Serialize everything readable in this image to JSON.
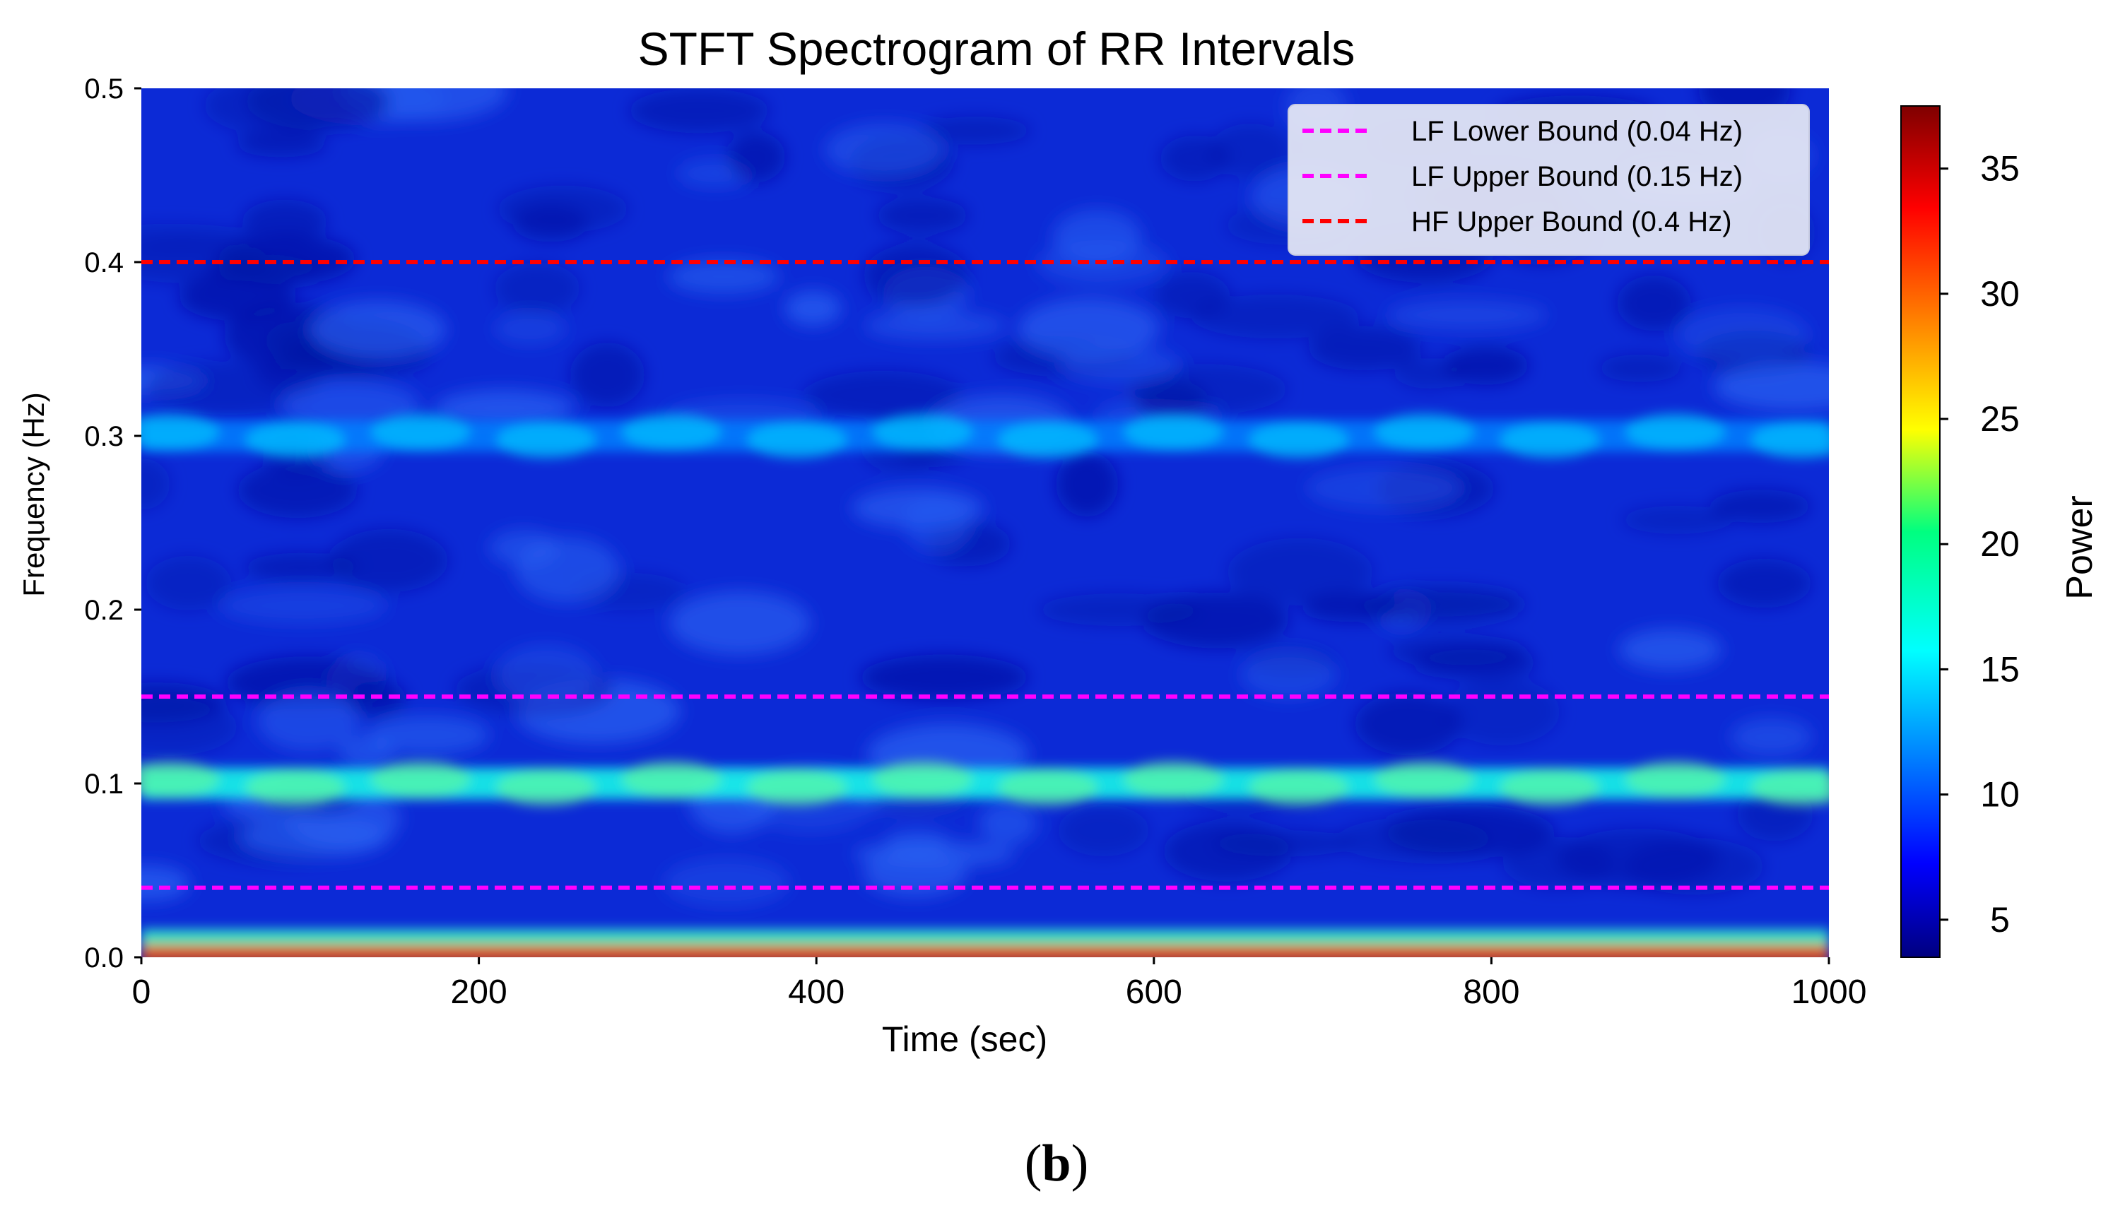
{
  "chart_data": {
    "type": "heatmap",
    "title": "STFT Spectrogram of RR Intervals",
    "xlabel": "Time (sec)",
    "ylabel": "Frequency (Hz)",
    "xlim": [
      0,
      1000
    ],
    "ylim": [
      0,
      0.5
    ],
    "x_ticks": [
      "0",
      "200",
      "400",
      "600",
      "800",
      "1000"
    ],
    "y_ticks": [
      "0.0",
      "0.1",
      "0.2",
      "0.3",
      "0.4",
      "0.5"
    ],
    "colorbar": {
      "label": "Power",
      "range": [
        3.5,
        37.5
      ],
      "ticks": [
        "5",
        "10",
        "15",
        "20",
        "25",
        "30",
        "35"
      ],
      "colormap": "jet"
    },
    "bands": [
      {
        "frequency": 0.004,
        "power": 30,
        "description": "very low frequency"
      },
      {
        "frequency": 0.1,
        "power": 17
      },
      {
        "frequency": 0.3,
        "power": 12
      }
    ],
    "background_power": 7,
    "reference_lines": [
      {
        "label": "LF Lower Bound (0.04 Hz)",
        "y": 0.04,
        "color": "#ff00ff",
        "style": "dashed"
      },
      {
        "label": "LF Upper Bound (0.15 Hz)",
        "y": 0.15,
        "color": "#ff00ff",
        "style": "dashed"
      },
      {
        "label": "HF Upper Bound (0.4 Hz)",
        "y": 0.4,
        "color": "#ff0000",
        "style": "dashed"
      }
    ],
    "legend_position": "top-right",
    "grid": false
  },
  "panel_label": {
    "open": "(",
    "letter": "b",
    "close": ")"
  }
}
